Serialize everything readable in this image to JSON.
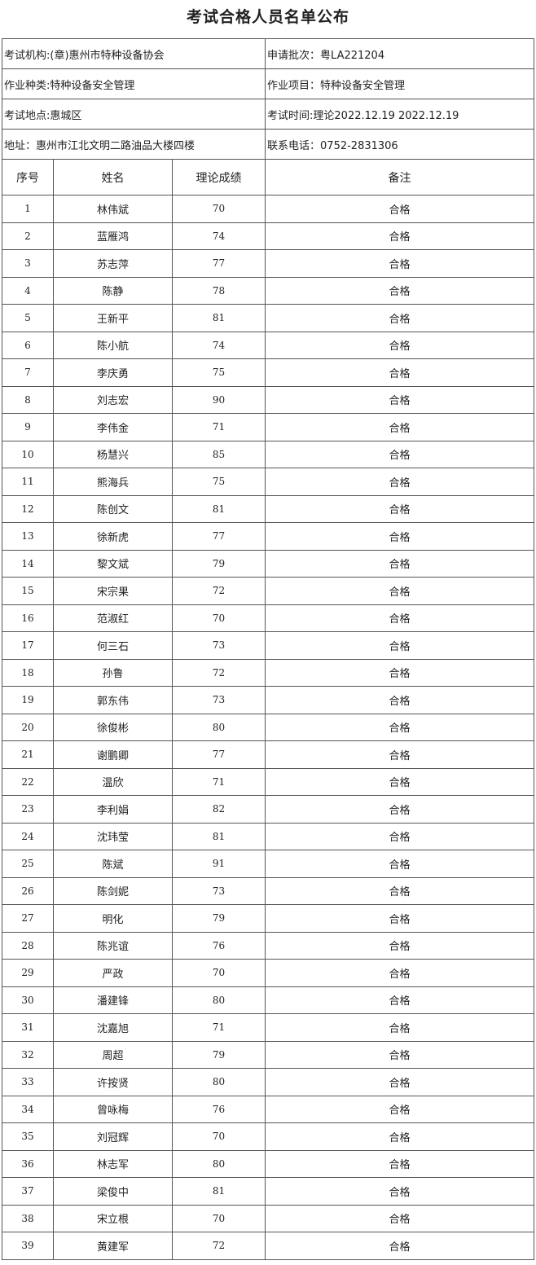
{
  "title": "考试合格人员名单公布",
  "info": {
    "institution": "考试机构:(章)惠州市特种设备协会",
    "batch": "申请批次：粤LA221204",
    "category": "作业种类:特种设备安全管理",
    "item": "作业项目：特种设备安全管理",
    "location": "考试地点:惠城区",
    "time": "考试时间:理论2022.12.19 2022.12.19",
    "address": "地址：惠州市江北文明二路油品大楼四楼",
    "phone": "联系电话：0752-2831306"
  },
  "columns": [
    "序号",
    "姓名",
    "理论成绩",
    "备注"
  ],
  "rows": [
    [
      "1",
      "林伟斌",
      "70",
      "合格"
    ],
    [
      "2",
      "蓝雁鸿",
      "74",
      "合格"
    ],
    [
      "3",
      "苏志萍",
      "77",
      "合格"
    ],
    [
      "4",
      "陈静",
      "78",
      "合格"
    ],
    [
      "5",
      "王新平",
      "81",
      "合格"
    ],
    [
      "6",
      "陈小航",
      "74",
      "合格"
    ],
    [
      "7",
      "李庆勇",
      "75",
      "合格"
    ],
    [
      "8",
      "刘志宏",
      "90",
      "合格"
    ],
    [
      "9",
      "李伟金",
      "71",
      "合格"
    ],
    [
      "10",
      "杨慧兴",
      "85",
      "合格"
    ],
    [
      "11",
      "熊海兵",
      "75",
      "合格"
    ],
    [
      "12",
      "陈创文",
      "81",
      "合格"
    ],
    [
      "13",
      "徐新虎",
      "77",
      "合格"
    ],
    [
      "14",
      "黎文斌",
      "79",
      "合格"
    ],
    [
      "15",
      "宋宗果",
      "72",
      "合格"
    ],
    [
      "16",
      "范淑红",
      "70",
      "合格"
    ],
    [
      "17",
      "何三石",
      "73",
      "合格"
    ],
    [
      "18",
      "孙鲁",
      "72",
      "合格"
    ],
    [
      "19",
      "郭东伟",
      "73",
      "合格"
    ],
    [
      "20",
      "徐俊彬",
      "80",
      "合格"
    ],
    [
      "21",
      "谢鹏卿",
      "77",
      "合格"
    ],
    [
      "22",
      "温欣",
      "71",
      "合格"
    ],
    [
      "23",
      "李利娟",
      "82",
      "合格"
    ],
    [
      "24",
      "沈玮莹",
      "81",
      "合格"
    ],
    [
      "25",
      "陈斌",
      "91",
      "合格"
    ],
    [
      "26",
      "陈剑妮",
      "73",
      "合格"
    ],
    [
      "27",
      "明化",
      "79",
      "合格"
    ],
    [
      "28",
      "陈兆谊",
      "76",
      "合格"
    ],
    [
      "29",
      "严政",
      "70",
      "合格"
    ],
    [
      "30",
      "潘建锋",
      "80",
      "合格"
    ],
    [
      "31",
      "沈嘉旭",
      "71",
      "合格"
    ],
    [
      "32",
      "周超",
      "79",
      "合格"
    ],
    [
      "33",
      "许按贤",
      "80",
      "合格"
    ],
    [
      "34",
      "曾咏梅",
      "76",
      "合格"
    ],
    [
      "35",
      "刘冠辉",
      "70",
      "合格"
    ],
    [
      "36",
      "林志军",
      "80",
      "合格"
    ],
    [
      "37",
      "梁俊中",
      "81",
      "合格"
    ],
    [
      "38",
      "宋立根",
      "70",
      "合格"
    ],
    [
      "39",
      "黄建军",
      "72",
      "合格"
    ]
  ]
}
